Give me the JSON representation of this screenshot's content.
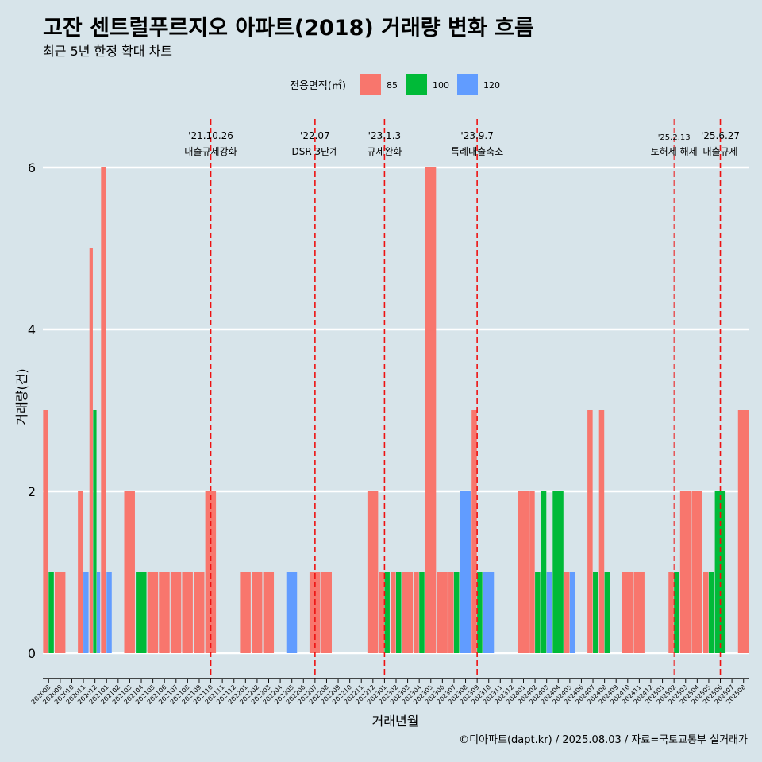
{
  "chart_data": {
    "type": "bar",
    "title": "고잔 센트럴푸르지오 아파트(2018) 거래량 변화 흐름",
    "subtitle": "최근 5년 한정 확대 차트",
    "xlabel": "거래년월",
    "ylabel": "거래량(건)",
    "caption": "©디아파트(dapt.kr) / 2025.08.03 / 자료=국토교통부 실거래가",
    "legend_title": "전용면적(㎡)",
    "legend_position": "top",
    "ylim": [
      0,
      6.3
    ],
    "yticks": [
      "0",
      "2",
      "4",
      "6"
    ],
    "grid": true,
    "categories": [
      "202008",
      "202009",
      "202010",
      "202011",
      "202012",
      "202101",
      "202102",
      "202103",
      "202104",
      "202105",
      "202106",
      "202107",
      "202108",
      "202109",
      "202110",
      "202111",
      "202112",
      "202201",
      "202202",
      "202203",
      "202204",
      "202205",
      "202206",
      "202207",
      "202208",
      "202209",
      "202210",
      "202211",
      "202212",
      "202301",
      "202302",
      "202303",
      "202304",
      "202305",
      "202306",
      "202307",
      "202308",
      "202309",
      "202310",
      "202311",
      "202312",
      "202401",
      "202402",
      "202403",
      "202404",
      "202405",
      "202406",
      "202407",
      "202408",
      "202409",
      "202410",
      "202411",
      "202412",
      "202501",
      "202502",
      "202503",
      "202504",
      "202505",
      "202506",
      "202507",
      "202508"
    ],
    "series": [
      {
        "name": "85",
        "color": "#f8766d",
        "values": [
          3,
          1,
          0,
          2,
          5,
          6,
          0,
          2,
          0,
          1,
          1,
          1,
          1,
          1,
          2,
          0,
          0,
          1,
          1,
          1,
          0,
          0,
          0,
          1,
          1,
          0,
          0,
          0,
          2,
          1,
          1,
          1,
          1,
          6,
          1,
          1,
          0,
          3,
          0,
          0,
          0,
          2,
          2,
          0,
          0,
          1,
          0,
          3,
          3,
          0,
          1,
          1,
          0,
          0,
          1,
          2,
          2,
          1,
          0,
          0,
          3
        ]
      },
      {
        "name": "100",
        "color": "#00ba38",
        "values": [
          1,
          0,
          0,
          0,
          3,
          0,
          0,
          0,
          1,
          0,
          0,
          0,
          0,
          0,
          0,
          0,
          0,
          0,
          0,
          0,
          0,
          0,
          0,
          0,
          0,
          0,
          0,
          0,
          0,
          1,
          1,
          0,
          1,
          0,
          0,
          1,
          0,
          1,
          0,
          0,
          0,
          0,
          1,
          2,
          2,
          0,
          0,
          1,
          1,
          0,
          0,
          0,
          0,
          0,
          1,
          0,
          0,
          1,
          2,
          0,
          0
        ]
      },
      {
        "name": "120",
        "color": "#619cff",
        "values": [
          0,
          0,
          0,
          1,
          1,
          1,
          0,
          0,
          0,
          0,
          0,
          0,
          0,
          0,
          0,
          0,
          0,
          0,
          0,
          0,
          0,
          1,
          0,
          0,
          0,
          0,
          0,
          0,
          0,
          0,
          0,
          0,
          0,
          0,
          0,
          0,
          2,
          0,
          1,
          0,
          0,
          0,
          0,
          1,
          0,
          1,
          0,
          0,
          0,
          0,
          0,
          0,
          0,
          0,
          0,
          0,
          0,
          0,
          0,
          0,
          0
        ]
      }
    ],
    "annotations": [
      {
        "position": 14.5,
        "date": "'21.10.26",
        "label": "대출규제강화",
        "small": false
      },
      {
        "position": 23.5,
        "date": "'22.07",
        "label": "DSR 3단계",
        "small": false
      },
      {
        "position": 29.5,
        "date": "'23.1.3",
        "label": "규제완화",
        "small": false
      },
      {
        "position": 37.5,
        "date": "'23.9.7",
        "label": "특례대출축소",
        "small": false
      },
      {
        "position": 54.5,
        "date": "'25.2.13",
        "label": "토허제 해제",
        "small": true
      },
      {
        "position": 58.5,
        "date": "'25.6.27",
        "label": "대출규제",
        "small": false
      }
    ]
  }
}
